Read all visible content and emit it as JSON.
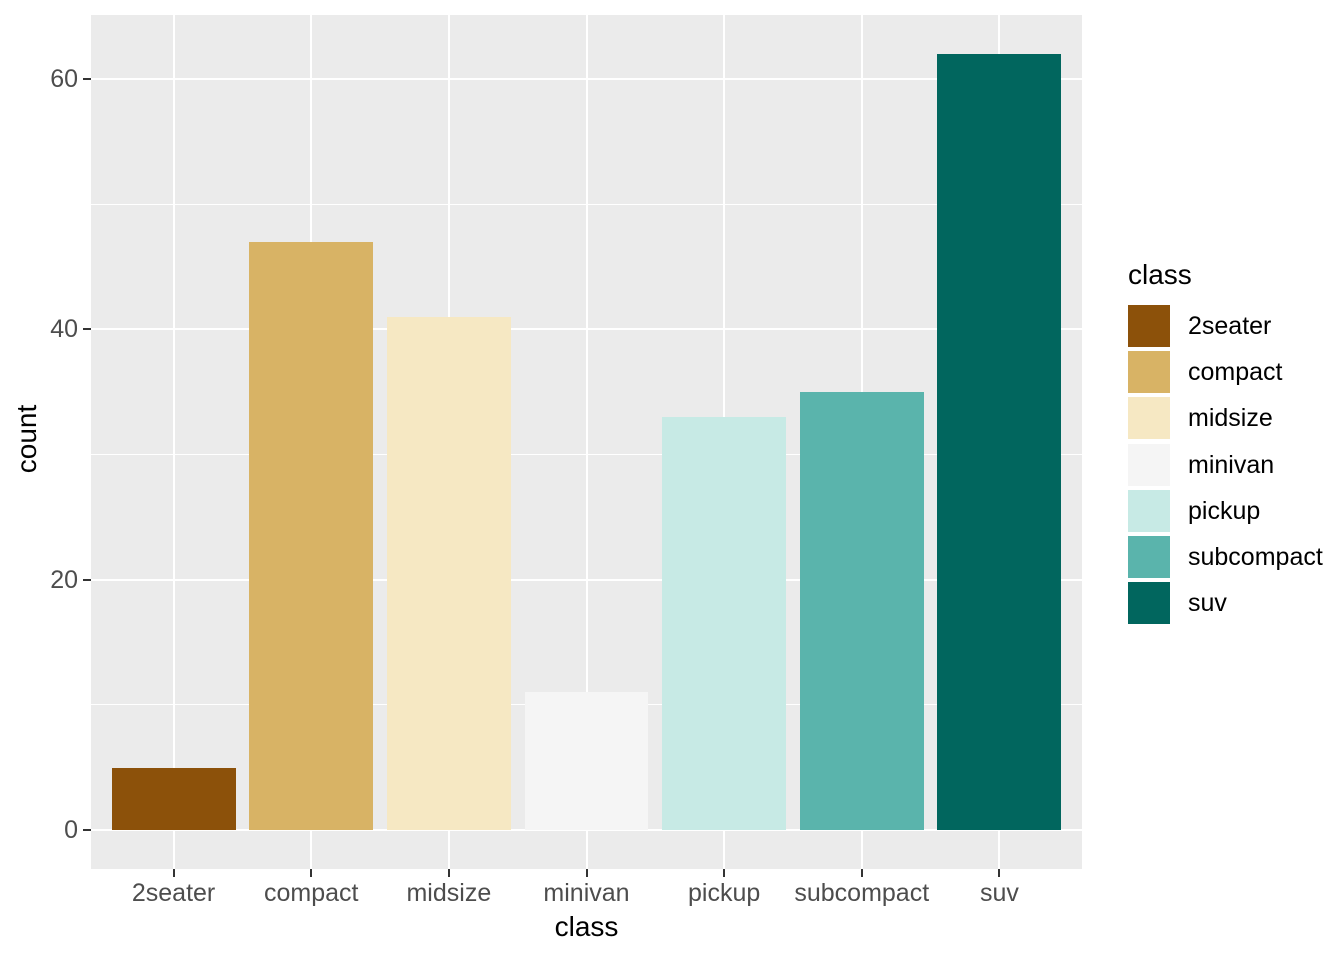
{
  "figure": {
    "background": "#FFFFFF",
    "panel_background": "#EBEBEB",
    "gridline_color": "#FFFFFF",
    "tick_mark_color": "#333333",
    "axis_text_color": "#4D4D4D",
    "axis_title_color": "#000000"
  },
  "chart_data": {
    "type": "bar",
    "title": "",
    "xlabel": "class",
    "ylabel": "count",
    "categories": [
      "2seater",
      "compact",
      "midsize",
      "minivan",
      "pickup",
      "subcompact",
      "suv"
    ],
    "values": [
      5,
      47,
      41,
      11,
      33,
      35,
      62
    ],
    "bar_colors": [
      "#8C510A",
      "#D8B365",
      "#F6E8C3",
      "#F5F5F5",
      "#C7EAE5",
      "#5AB4AC",
      "#01665E"
    ],
    "y_major_ticks": [
      0,
      20,
      40,
      60
    ],
    "y_minor_ticks": [
      10,
      30,
      50
    ],
    "ylim": [
      -3.1,
      65.1
    ],
    "grid": "major-and-minor, white on gray panel",
    "legend": {
      "position": "right",
      "title": "class",
      "entries": [
        {
          "label": "2seater",
          "color": "#8C510A"
        },
        {
          "label": "compact",
          "color": "#D8B365"
        },
        {
          "label": "midsize",
          "color": "#F6E8C3"
        },
        {
          "label": "minivan",
          "color": "#F5F5F5"
        },
        {
          "label": "pickup",
          "color": "#C7EAE5"
        },
        {
          "label": "subcompact",
          "color": "#5AB4AC"
        },
        {
          "label": "suv",
          "color": "#01665E"
        }
      ]
    }
  }
}
